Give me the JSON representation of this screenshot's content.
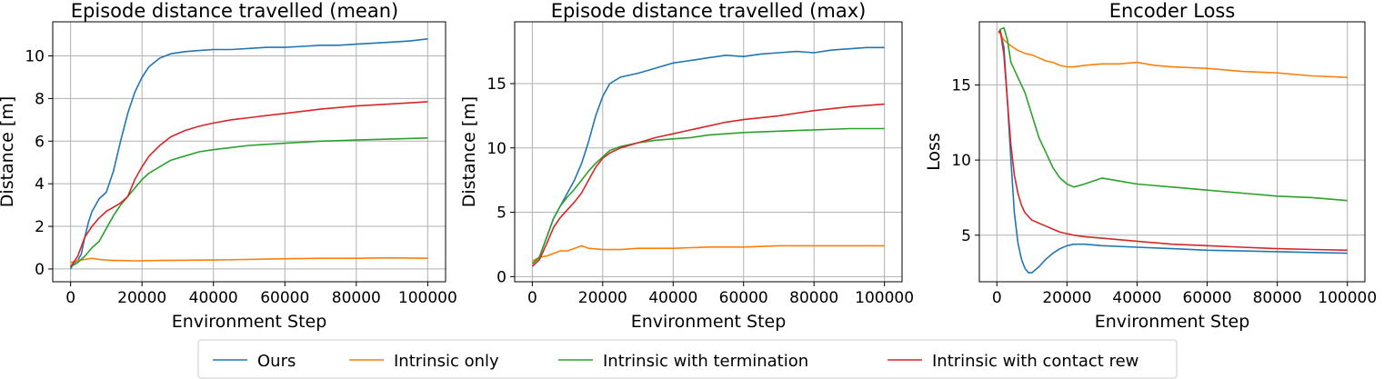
{
  "legend": {
    "placement": "bottom-center",
    "entries": [
      {
        "label": "Ours",
        "color": "#1f77b4"
      },
      {
        "label": "Intrinsic only",
        "color": "#ff7f0e"
      },
      {
        "label": "Intrinsic with termination",
        "color": "#2ca02c"
      },
      {
        "label": "Intrinsic with contact rew",
        "color": "#d62728"
      }
    ]
  },
  "chart_data": [
    {
      "type": "line",
      "title": "Episode distance travelled (mean)",
      "xlabel": "Environment Step",
      "ylabel": "Distance [m]",
      "xlim": [
        -5000,
        105000
      ],
      "ylim": [
        -0.6,
        11.6
      ],
      "xticks": [
        0,
        20000,
        40000,
        60000,
        80000,
        100000
      ],
      "yticks": [
        0,
        2,
        4,
        6,
        8,
        10
      ],
      "grid": true,
      "series": [
        {
          "name": "Ours",
          "color": "#1f77b4",
          "x": [
            0,
            1000,
            2000,
            3000,
            4000,
            5000,
            6000,
            8000,
            10000,
            12000,
            14000,
            16000,
            18000,
            20000,
            22000,
            25000,
            28000,
            32000,
            36000,
            40000,
            45000,
            50000,
            55000,
            60000,
            65000,
            70000,
            75000,
            80000,
            85000,
            90000,
            95000,
            100000
          ],
          "y": [
            0,
            0.3,
            0.4,
            0.7,
            1.5,
            2.2,
            2.7,
            3.3,
            3.6,
            4.6,
            6.0,
            7.3,
            8.3,
            9.0,
            9.5,
            9.9,
            10.1,
            10.2,
            10.25,
            10.3,
            10.3,
            10.35,
            10.4,
            10.4,
            10.45,
            10.5,
            10.5,
            10.55,
            10.6,
            10.65,
            10.7,
            10.8
          ]
        },
        {
          "name": "Intrinsic only",
          "color": "#ff7f0e",
          "x": [
            0,
            2000,
            4000,
            6000,
            8000,
            10000,
            12000,
            14000,
            18000,
            25000,
            40000,
            50000,
            60000,
            70000,
            80000,
            90000,
            100000
          ],
          "y": [
            0.3,
            0.4,
            0.45,
            0.5,
            0.45,
            0.42,
            0.4,
            0.4,
            0.38,
            0.4,
            0.42,
            0.45,
            0.48,
            0.5,
            0.5,
            0.52,
            0.5
          ]
        },
        {
          "name": "Intrinsic with termination",
          "color": "#2ca02c",
          "x": [
            0,
            2000,
            4000,
            6000,
            8000,
            10000,
            12000,
            14000,
            16000,
            18000,
            20000,
            22000,
            25000,
            28000,
            32000,
            36000,
            40000,
            45000,
            50000,
            55000,
            60000,
            70000,
            80000,
            90000,
            100000
          ],
          "y": [
            0.1,
            0.3,
            0.6,
            1.0,
            1.3,
            1.9,
            2.5,
            3.0,
            3.4,
            3.8,
            4.2,
            4.5,
            4.8,
            5.1,
            5.3,
            5.5,
            5.6,
            5.7,
            5.8,
            5.85,
            5.9,
            6.0,
            6.05,
            6.1,
            6.15
          ]
        },
        {
          "name": "Intrinsic with contact rew",
          "color": "#d62728",
          "x": [
            0,
            2000,
            4000,
            6000,
            8000,
            10000,
            12000,
            14000,
            16000,
            18000,
            20000,
            22000,
            25000,
            28000,
            32000,
            36000,
            40000,
            45000,
            50000,
            55000,
            60000,
            70000,
            80000,
            90000,
            100000
          ],
          "y": [
            0.1,
            0.6,
            1.5,
            2.0,
            2.4,
            2.7,
            2.9,
            3.1,
            3.4,
            4.2,
            4.8,
            5.3,
            5.8,
            6.2,
            6.5,
            6.7,
            6.85,
            7.0,
            7.1,
            7.2,
            7.3,
            7.5,
            7.65,
            7.75,
            7.85
          ]
        }
      ]
    },
    {
      "type": "line",
      "title": "Episode distance travelled (max)",
      "xlabel": "Environment Step",
      "ylabel": "Distance [m]",
      "xlim": [
        -5000,
        105000
      ],
      "ylim": [
        -0.4,
        19.8
      ],
      "xticks": [
        0,
        20000,
        40000,
        60000,
        80000,
        100000
      ],
      "yticks": [
        0,
        5,
        10,
        15
      ],
      "grid": true,
      "series": [
        {
          "name": "Ours",
          "color": "#1f77b4",
          "x": [
            0,
            2000,
            4000,
            6000,
            8000,
            10000,
            12000,
            14000,
            16000,
            18000,
            20000,
            22000,
            25000,
            30000,
            35000,
            40000,
            45000,
            50000,
            55000,
            60000,
            65000,
            70000,
            75000,
            80000,
            85000,
            90000,
            95000,
            100000
          ],
          "y": [
            1.0,
            1.5,
            3.0,
            4.5,
            5.5,
            6.5,
            7.5,
            8.8,
            10.5,
            12.5,
            14.0,
            15.0,
            15.5,
            15.8,
            16.2,
            16.6,
            16.8,
            17.0,
            17.2,
            17.1,
            17.3,
            17.4,
            17.5,
            17.4,
            17.6,
            17.7,
            17.8,
            17.8
          ]
        },
        {
          "name": "Intrinsic only",
          "color": "#ff7f0e",
          "x": [
            0,
            2000,
            4000,
            6000,
            8000,
            10000,
            12000,
            14000,
            16000,
            20000,
            25000,
            30000,
            40000,
            50000,
            60000,
            70000,
            80000,
            90000,
            100000
          ],
          "y": [
            1.2,
            1.5,
            1.6,
            1.8,
            2.0,
            2.0,
            2.2,
            2.4,
            2.2,
            2.1,
            2.1,
            2.2,
            2.2,
            2.3,
            2.3,
            2.4,
            2.4,
            2.4,
            2.4
          ]
        },
        {
          "name": "Intrinsic with termination",
          "color": "#2ca02c",
          "x": [
            0,
            2000,
            4000,
            6000,
            8000,
            10000,
            12000,
            14000,
            16000,
            18000,
            20000,
            22000,
            25000,
            30000,
            35000,
            40000,
            45000,
            50000,
            55000,
            60000,
            70000,
            80000,
            90000,
            100000
          ],
          "y": [
            1.0,
            1.5,
            3.0,
            4.5,
            5.5,
            6.2,
            6.8,
            7.5,
            8.2,
            8.8,
            9.3,
            9.8,
            10.1,
            10.4,
            10.6,
            10.7,
            10.8,
            11.0,
            11.1,
            11.2,
            11.3,
            11.4,
            11.5,
            11.5
          ]
        },
        {
          "name": "Intrinsic with contact rew",
          "color": "#d62728",
          "x": [
            0,
            2000,
            4000,
            6000,
            8000,
            10000,
            12000,
            14000,
            16000,
            18000,
            20000,
            22000,
            25000,
            30000,
            35000,
            40000,
            45000,
            50000,
            55000,
            60000,
            70000,
            80000,
            90000,
            100000
          ],
          "y": [
            0.8,
            1.3,
            2.5,
            3.8,
            4.6,
            5.2,
            5.8,
            6.5,
            7.5,
            8.5,
            9.2,
            9.6,
            10.0,
            10.4,
            10.8,
            11.1,
            11.4,
            11.7,
            12.0,
            12.2,
            12.5,
            12.9,
            13.2,
            13.4
          ]
        }
      ]
    },
    {
      "type": "line",
      "title": "Encoder Loss",
      "xlabel": "Environment Step",
      "ylabel": "Loss",
      "xlim": [
        -5000,
        105000
      ],
      "ylim": [
        1.9,
        19.2
      ],
      "xticks": [
        0,
        20000,
        40000,
        60000,
        80000,
        100000
      ],
      "yticks": [
        5,
        10,
        15
      ],
      "grid": true,
      "series": [
        {
          "name": "Ours",
          "color": "#1f77b4",
          "x": [
            500,
            1000,
            2000,
            3000,
            4000,
            5000,
            6000,
            7000,
            8000,
            9000,
            10000,
            12000,
            14000,
            16000,
            18000,
            20000,
            22000,
            25000,
            30000,
            40000,
            50000,
            60000,
            70000,
            80000,
            90000,
            100000
          ],
          "y": [
            18.5,
            18.6,
            17.5,
            14.0,
            10.0,
            6.5,
            4.5,
            3.4,
            2.8,
            2.5,
            2.5,
            2.9,
            3.4,
            3.8,
            4.1,
            4.3,
            4.4,
            4.4,
            4.3,
            4.2,
            4.1,
            4.0,
            3.95,
            3.9,
            3.85,
            3.8
          ]
        },
        {
          "name": "Intrinsic only",
          "color": "#ff7f0e",
          "x": [
            500,
            1000,
            2000,
            4000,
            6000,
            8000,
            10000,
            12000,
            14000,
            16000,
            18000,
            20000,
            22000,
            25000,
            30000,
            35000,
            40000,
            45000,
            50000,
            60000,
            70000,
            80000,
            90000,
            100000
          ],
          "y": [
            18.5,
            18.4,
            18.0,
            17.6,
            17.3,
            17.1,
            17.0,
            16.8,
            16.6,
            16.5,
            16.3,
            16.2,
            16.2,
            16.3,
            16.4,
            16.4,
            16.5,
            16.3,
            16.2,
            16.1,
            15.9,
            15.8,
            15.6,
            15.5
          ]
        },
        {
          "name": "Intrinsic with termination",
          "color": "#2ca02c",
          "x": [
            500,
            1000,
            2000,
            3000,
            4000,
            6000,
            8000,
            10000,
            12000,
            14000,
            16000,
            18000,
            20000,
            22000,
            25000,
            30000,
            35000,
            40000,
            50000,
            60000,
            70000,
            80000,
            90000,
            100000
          ],
          "y": [
            18.5,
            18.7,
            18.8,
            18.0,
            16.5,
            15.5,
            14.5,
            13.0,
            11.5,
            10.5,
            9.5,
            8.8,
            8.4,
            8.2,
            8.4,
            8.8,
            8.6,
            8.4,
            8.2,
            8.0,
            7.8,
            7.6,
            7.5,
            7.3
          ]
        },
        {
          "name": "Intrinsic with contact rew",
          "color": "#d62728",
          "x": [
            500,
            1000,
            2000,
            3000,
            4000,
            5000,
            6000,
            7000,
            8000,
            10000,
            12000,
            14000,
            16000,
            18000,
            20000,
            22000,
            25000,
            30000,
            40000,
            50000,
            60000,
            70000,
            80000,
            90000,
            100000
          ],
          "y": [
            18.5,
            18.6,
            17.0,
            14.0,
            11.0,
            9.0,
            7.8,
            7.0,
            6.5,
            6.0,
            5.8,
            5.6,
            5.4,
            5.2,
            5.1,
            5.0,
            4.9,
            4.8,
            4.6,
            4.4,
            4.3,
            4.2,
            4.1,
            4.05,
            4.0
          ]
        }
      ]
    }
  ]
}
